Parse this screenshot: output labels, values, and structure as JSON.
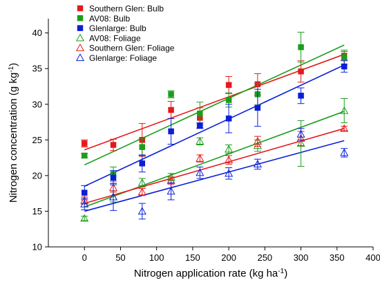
{
  "chart_data": {
    "type": "scatter",
    "xlabel_main": "Nitrogen application rate (kg ha",
    "xlabel_sup": "-1",
    "xlabel_end": ")",
    "ylabel_main": "Nitrogen concentration (g kg",
    "ylabel_sup": "-1",
    "ylabel_end": ")",
    "xlim": [
      -50,
      400
    ],
    "ylim": [
      10,
      42
    ],
    "xticks": [
      0,
      50,
      100,
      150,
      200,
      250,
      300,
      350,
      400
    ],
    "yticks": [
      10,
      15,
      20,
      25,
      30,
      35,
      40
    ],
    "grid": false,
    "legend_position": "top-left",
    "series": [
      {
        "name": "Southern Glen: Bulb",
        "marker": "square-filled",
        "color": "#e31a1c",
        "x": [
          0,
          40,
          80,
          120,
          160,
          200,
          240,
          300,
          360
        ],
        "y": [
          24.5,
          24.3,
          25.0,
          29.2,
          28.1,
          32.7,
          32.8,
          34.6,
          36.8
        ],
        "err": [
          0.5,
          0.8,
          2.3,
          1.2,
          1.4,
          1.2,
          1.5,
          1.5,
          0.6
        ],
        "fit": [
          23.6,
          37.0
        ]
      },
      {
        "name": "AV08: Bulb",
        "marker": "square-filled",
        "color": "#1b9e1b",
        "x": [
          0,
          40,
          80,
          120,
          160,
          200,
          240,
          300,
          360
        ],
        "y": [
          22.8,
          20.2,
          24.0,
          31.4,
          28.7,
          30.6,
          31.4,
          38.0,
          36.6
        ],
        "err": [
          0.3,
          1.0,
          1.2,
          0.5,
          1.6,
          1.0,
          1.5,
          2.1,
          1.0
        ],
        "fit": [
          21.5,
          38.3
        ]
      },
      {
        "name": "Glenlarge: Bulb",
        "marker": "square-filled",
        "color": "#0a1ed8",
        "x": [
          0,
          40,
          80,
          120,
          160,
          200,
          240,
          300,
          360
        ],
        "y": [
          17.6,
          19.7,
          21.7,
          26.2,
          27.0,
          28.0,
          29.5,
          31.2,
          35.3
        ],
        "err": [
          1.0,
          1.0,
          1.2,
          1.8,
          0.4,
          2.0,
          2.6,
          1.1,
          0.8
        ],
        "fit": [
          18.5,
          35.5
        ]
      },
      {
        "name": "AV08: Foliage",
        "marker": "triangle-open",
        "color": "#1b9e1b",
        "x": [
          0,
          40,
          80,
          120,
          160,
          200,
          240,
          300,
          360
        ],
        "y": [
          14.0,
          17.0,
          19.0,
          19.8,
          24.8,
          23.7,
          24.2,
          24.5,
          29.1
        ],
        "err": [
          0.3,
          0.7,
          0.6,
          0.5,
          0.5,
          0.6,
          0.8,
          3.2,
          1.7
        ],
        "fit": [
          15.6,
          29.0
        ]
      },
      {
        "name": "Southern Glen: Foliage",
        "marker": "triangle-open",
        "color": "#e31a1c",
        "x": [
          0,
          40,
          80,
          120,
          160,
          200,
          240,
          300,
          360
        ],
        "y": [
          16.5,
          18.3,
          17.7,
          19.3,
          22.4,
          22.2,
          24.8,
          25.2,
          26.6
        ],
        "err": [
          0.5,
          0.6,
          0.5,
          0.5,
          0.5,
          0.6,
          0.7,
          1.0,
          0.3
        ],
        "fit": [
          16.1,
          26.6
        ]
      },
      {
        "name": "Glenlarge: Foliage",
        "marker": "triangle-open",
        "color": "#0a1ed8",
        "x": [
          0,
          40,
          80,
          120,
          160,
          200,
          240,
          300,
          360
        ],
        "y": [
          16.0,
          17.0,
          15.0,
          17.8,
          20.4,
          20.3,
          21.6,
          25.8,
          23.2
        ],
        "err": [
          0.8,
          1.9,
          1.1,
          1.2,
          0.8,
          0.8,
          0.7,
          0.8,
          0.6
        ],
        "fit": [
          15.0,
          24.9
        ]
      }
    ]
  }
}
